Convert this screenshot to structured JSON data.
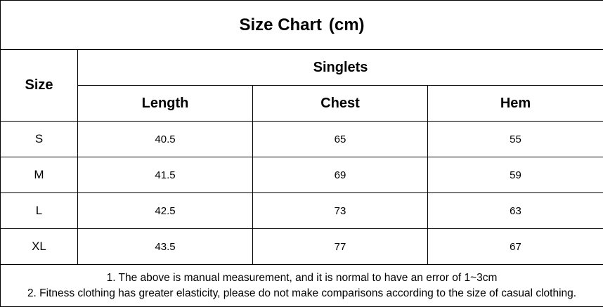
{
  "title": "Size Chart",
  "title_unit": "(cm)",
  "size_header": "Size",
  "group_header": "Singlets",
  "columns": [
    "Length",
    "Chest",
    "Hem"
  ],
  "rows": [
    {
      "size": "S",
      "length": "40.5",
      "chest": "65",
      "hem": "55"
    },
    {
      "size": "M",
      "length": "41.5",
      "chest": "69",
      "hem": "59"
    },
    {
      "size": "L",
      "length": "42.5",
      "chest": "73",
      "hem": "63"
    },
    {
      "size": "XL",
      "length": "43.5",
      "chest": "77",
      "hem": "67"
    }
  ],
  "notes": [
    "1. The above is manual measurement, and it is normal to have an error of 1~3cm",
    "2. Fitness clothing has greater elasticity, please do not make comparisons according to the size of casual clothing."
  ],
  "colors": {
    "border": "#000000",
    "background": "#ffffff",
    "text": "#000000"
  }
}
